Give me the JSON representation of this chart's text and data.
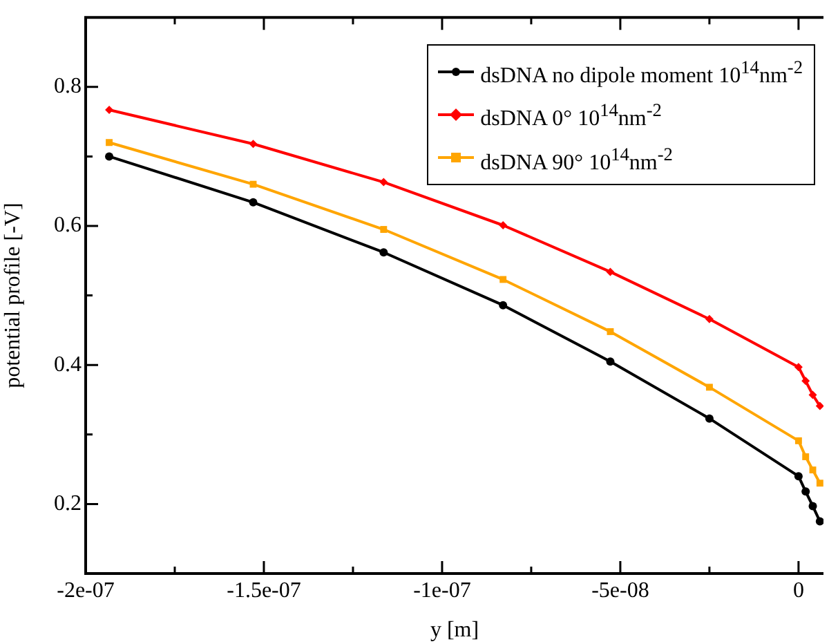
{
  "chart_data": {
    "type": "line",
    "xlabel": "y [m]",
    "ylabel": "potential profile [-V]",
    "x": [
      -1.934e-07,
      -1.53e-07,
      -1.164e-07,
      -8.29e-08,
      -5.28e-08,
      -2.5e-08,
      0,
      2e-09,
      4e-09,
      6e-09
    ],
    "series": [
      {
        "name": "dsDNA no dipole moment 10$^{14}$nm$^{-2}$",
        "color": "#000000",
        "marker": "circle",
        "values": [
          0.7,
          0.634,
          0.562,
          0.486,
          0.405,
          0.323,
          0.24,
          0.218,
          0.197,
          0.175
        ]
      },
      {
        "name": "dsDNA 0° 10$^{14}$nm$^{-2}$",
        "color": "#ff0000",
        "marker": "diamond",
        "values": [
          0.767,
          0.718,
          0.663,
          0.601,
          0.534,
          0.466,
          0.397,
          0.377,
          0.357,
          0.341
        ]
      },
      {
        "name": "dsDNA 90° 10$^{14}$nm$^{-2}$",
        "color": "#ffa500",
        "marker": "square",
        "values": [
          0.72,
          0.66,
          0.595,
          0.523,
          0.448,
          0.368,
          0.291,
          0.268,
          0.249,
          0.23
        ]
      }
    ],
    "xlim": [
      -2e-07,
      7e-09
    ],
    "xticks": [
      {
        "value": -2e-07,
        "label": "-2e-07"
      },
      {
        "value": -1.75e-07,
        "label": null
      },
      {
        "value": -1.5e-07,
        "label": "-1.5e-07"
      },
      {
        "value": -1.25e-07,
        "label": null
      },
      {
        "value": -1e-07,
        "label": "-1e-07"
      },
      {
        "value": -7.5e-08,
        "label": null
      },
      {
        "value": -5e-08,
        "label": "-5e-08"
      },
      {
        "value": -2.5e-08,
        "label": null
      },
      {
        "value": 0,
        "label": "0"
      }
    ],
    "ylim": [
      0.1,
      0.9
    ],
    "yticks": [
      {
        "value": 0.2,
        "label": "0.2"
      },
      {
        "value": 0.3,
        "label": null
      },
      {
        "value": 0.4,
        "label": "0.4"
      },
      {
        "value": 0.5,
        "label": null
      },
      {
        "value": 0.6,
        "label": "0.6"
      },
      {
        "value": 0.7,
        "label": null
      },
      {
        "value": 0.8,
        "label": "0.8"
      }
    ],
    "grid": false,
    "legend": "top right",
    "line_style": "solid"
  }
}
